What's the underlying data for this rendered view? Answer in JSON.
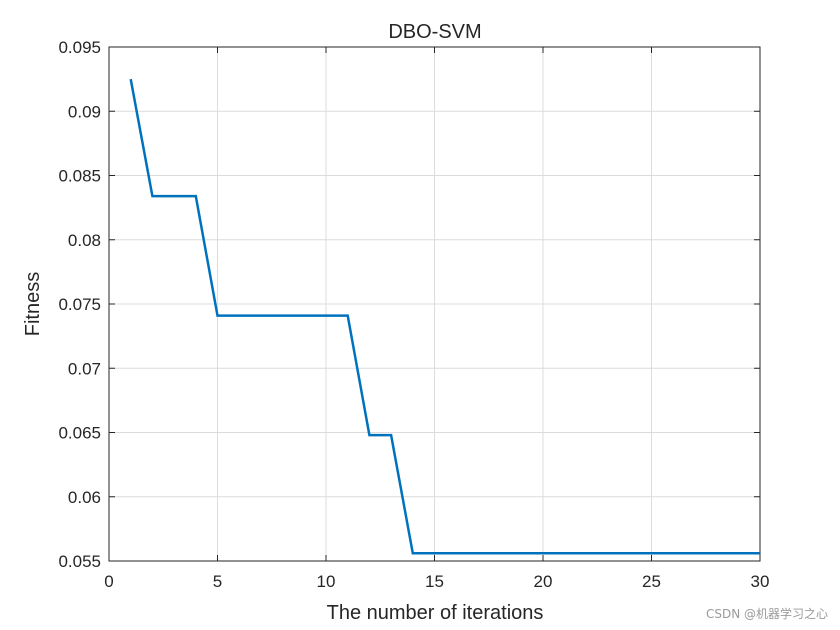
{
  "chart_data": {
    "type": "line",
    "title": "DBO-SVM",
    "xlabel": "The number of iterations",
    "ylabel": "Fitness",
    "xlim": [
      0,
      30
    ],
    "ylim": [
      0.055,
      0.095
    ],
    "xticks": [
      0,
      5,
      10,
      15,
      20,
      25,
      30
    ],
    "yticks": [
      0.055,
      0.06,
      0.065,
      0.07,
      0.075,
      0.08,
      0.085,
      0.09,
      0.095
    ],
    "xtick_labels": [
      "0",
      "5",
      "10",
      "15",
      "20",
      "25",
      "30"
    ],
    "ytick_labels": [
      "0.055",
      "0.06",
      "0.065",
      "0.07",
      "0.075",
      "0.08",
      "0.085",
      "0.09",
      "0.095"
    ],
    "grid": true,
    "series": [
      {
        "name": "DBO-SVM",
        "color": "#0072BD",
        "x": [
          1,
          2,
          3,
          4,
          5,
          6,
          7,
          8,
          9,
          10,
          11,
          12,
          13,
          14,
          15,
          16,
          17,
          18,
          19,
          20,
          21,
          22,
          23,
          24,
          25,
          26,
          27,
          28,
          29,
          30
        ],
        "values": [
          0.0925,
          0.0834,
          0.0834,
          0.0834,
          0.0741,
          0.0741,
          0.0741,
          0.0741,
          0.0741,
          0.0741,
          0.0741,
          0.0648,
          0.0648,
          0.0556,
          0.0556,
          0.0556,
          0.0556,
          0.0556,
          0.0556,
          0.0556,
          0.0556,
          0.0556,
          0.0556,
          0.0556,
          0.0556,
          0.0556,
          0.0556,
          0.0556,
          0.0556,
          0.0556
        ]
      }
    ]
  },
  "watermark": "CSDN @机器学习之心"
}
